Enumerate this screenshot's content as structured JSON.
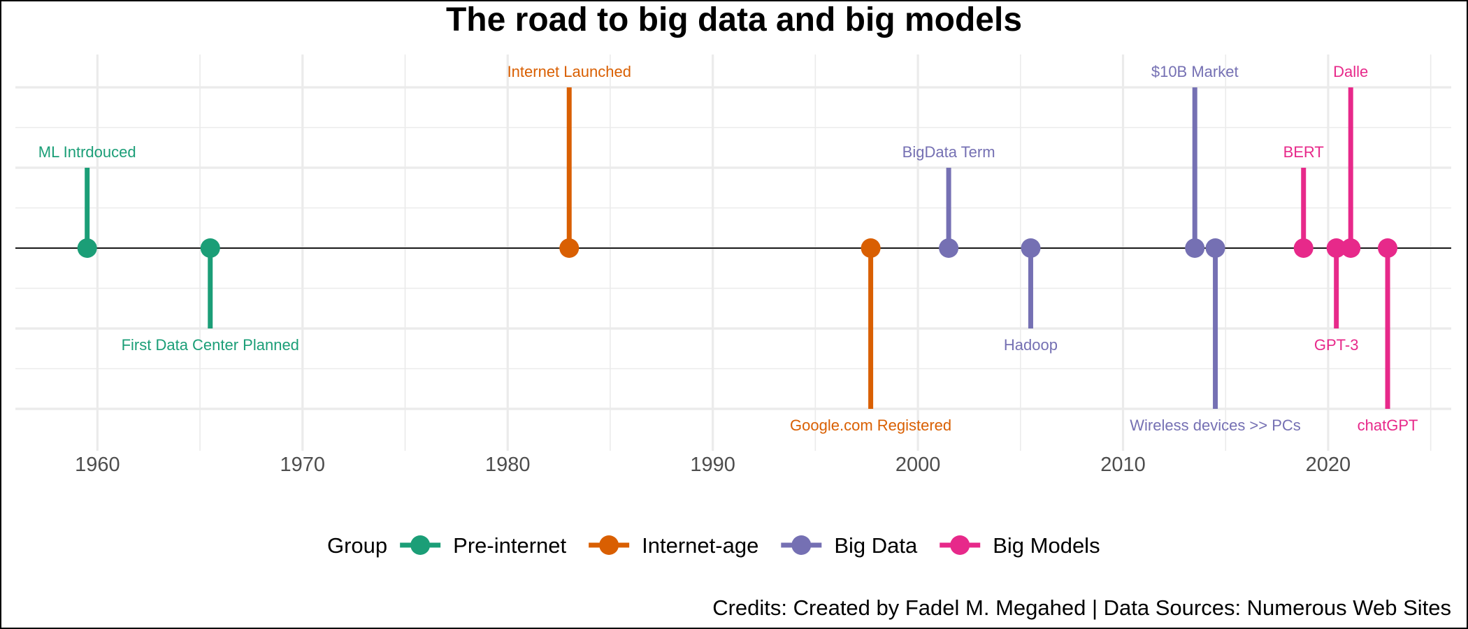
{
  "chart_data": {
    "type": "scatter",
    "title": "The road to big data and big models",
    "caption": "Credits: Created by Fadel M. Megahed | Data Sources: Numerous Web Sites",
    "xlim": [
      1956,
      2026
    ],
    "ylim": [
      -2,
      2
    ],
    "x_ticks": [
      1960,
      1970,
      1980,
      1990,
      2000,
      2010,
      2020
    ],
    "x_tick_labels": [
      "1960",
      "1970",
      "1980",
      "1990",
      "2000",
      "2010",
      "2020"
    ],
    "grid": true,
    "legend_placement": "bottom",
    "legend_title": "Group",
    "groups": [
      {
        "name": "Pre-internet",
        "color": "#1b9e77"
      },
      {
        "name": "Internet-age",
        "color": "#d95f02"
      },
      {
        "name": "Big Data",
        "color": "#7570b3"
      },
      {
        "name": "Big Models",
        "color": "#e7298a"
      }
    ],
    "events": [
      {
        "label": "ML Intrdouced",
        "year": 1959.5,
        "height": 1,
        "group": "Pre-internet"
      },
      {
        "label": "First Data Center Planned",
        "year": 1965.5,
        "height": -1,
        "group": "Pre-internet"
      },
      {
        "label": "Internet Launched",
        "year": 1983,
        "height": 2,
        "group": "Internet-age"
      },
      {
        "label": "Google.com Registered",
        "year": 1997.7,
        "height": -2,
        "group": "Internet-age"
      },
      {
        "label": "BigData Term",
        "year": 2001.5,
        "height": 1,
        "group": "Big Data"
      },
      {
        "label": "Hadoop",
        "year": 2005.5,
        "height": -1,
        "group": "Big Data"
      },
      {
        "label": "$10B Market",
        "year": 2013.5,
        "height": 2,
        "group": "Big Data"
      },
      {
        "label": "Wireless devices >> PCs",
        "year": 2014.5,
        "height": -2,
        "group": "Big Data"
      },
      {
        "label": "BERT",
        "year": 2018.8,
        "height": 1,
        "group": "Big Models"
      },
      {
        "label": "GPT-3",
        "year": 2020.4,
        "height": -1,
        "group": "Big Models"
      },
      {
        "label": "Dalle",
        "year": 2021.1,
        "height": 2,
        "group": "Big Models"
      },
      {
        "label": "chatGPT",
        "year": 2022.9,
        "height": -2,
        "group": "Big Models"
      }
    ]
  }
}
